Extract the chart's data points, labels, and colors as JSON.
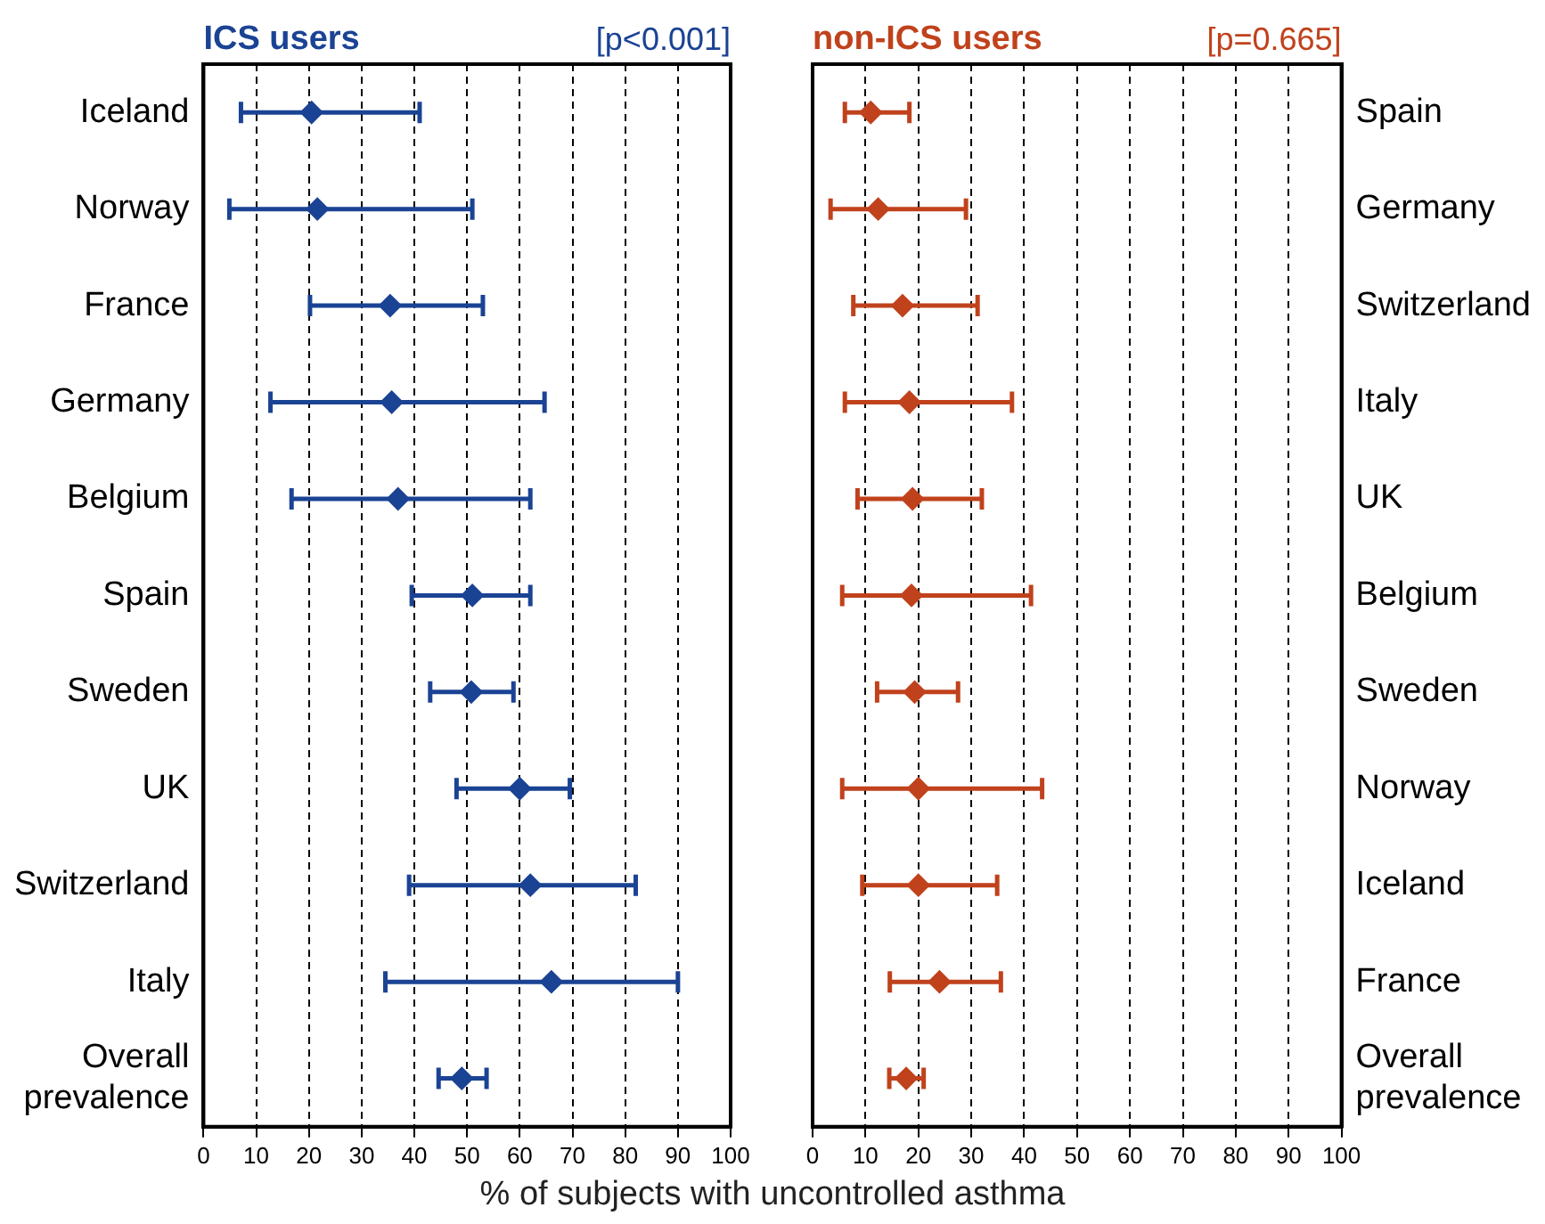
{
  "chart_data": [
    {
      "type": "scatter",
      "orientation": "horizontal",
      "title": "ICS users",
      "annotations": [
        "[p<0.001]"
      ],
      "xlabel": "% of subjects with uncontrolled asthma",
      "categories": [
        "Iceland",
        "Norway",
        "France",
        "Germany",
        "Belgium",
        "Spain",
        "Sweden",
        "UK",
        "Switzerland",
        "Italy",
        "Overall prevalence"
      ],
      "values": [
        20.5,
        21.6,
        35.4,
        35.7,
        36.9,
        51,
        50.8,
        60,
        62,
        66,
        49
      ],
      "errors": [
        [
          7.1,
          41
        ],
        [
          4.9,
          51
        ],
        [
          20.2,
          53
        ],
        [
          12.7,
          64.7
        ],
        [
          16.7,
          62
        ],
        [
          39.5,
          62
        ],
        [
          43,
          58.8
        ],
        [
          48,
          69.5
        ],
        [
          39,
          82
        ],
        [
          34.5,
          90
        ],
        [
          44.6,
          53.7
        ]
      ],
      "color": "#1b4394",
      "marker": "diamond",
      "grid": "x",
      "line_style": "dashed",
      "xlim": [
        0,
        100
      ],
      "xticks": [
        0,
        10,
        20,
        30,
        40,
        50,
        60,
        70,
        80,
        90,
        100
      ]
    },
    {
      "type": "scatter",
      "orientation": "horizontal",
      "title": "non-ICS users",
      "annotations": [
        "[p=0.665]"
      ],
      "categories": [
        "Spain",
        "Germany",
        "Switzerland",
        "Italy",
        "UK",
        "Belgium",
        "Sweden",
        "Norway",
        "Iceland",
        "France",
        "Overall prevalence"
      ],
      "values": [
        11,
        12.4,
        17,
        18.3,
        18.9,
        18.7,
        19.3,
        20,
        20,
        24,
        17.7
      ],
      "errors": [
        [
          6.1,
          18.3
        ],
        [
          3.4,
          29
        ],
        [
          7.7,
          31.2
        ],
        [
          6.1,
          37.7
        ],
        [
          8.5,
          32
        ],
        [
          5.6,
          41.3
        ],
        [
          12.2,
          27.5
        ],
        [
          5.6,
          43.4
        ],
        [
          9.4,
          34.9
        ],
        [
          14.6,
          35.6
        ],
        [
          14.5,
          21
        ]
      ],
      "color": "#c0421c",
      "marker": "diamond",
      "grid": "x",
      "line_style": "dashed",
      "xlim": [
        0,
        100
      ],
      "xticks": [
        0,
        10,
        20,
        30,
        40,
        50,
        60,
        70,
        80,
        90,
        100
      ]
    }
  ]
}
